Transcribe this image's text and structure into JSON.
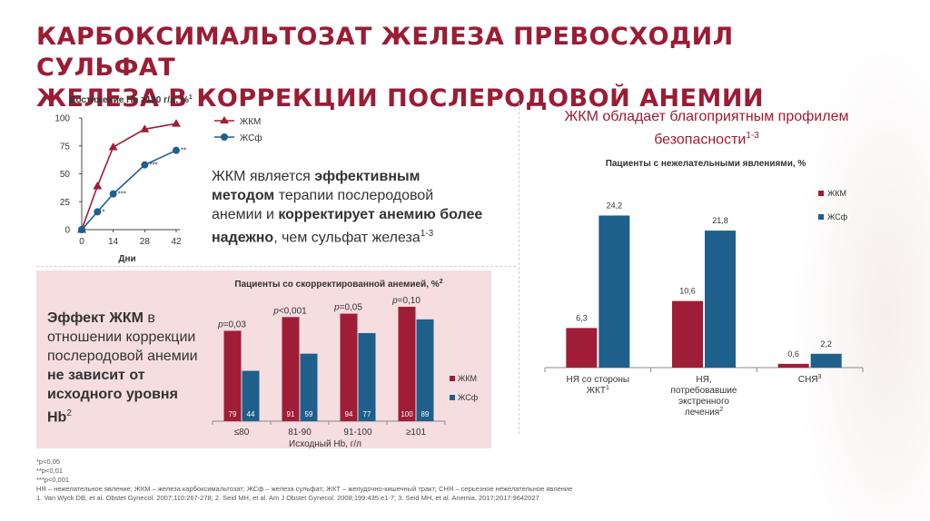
{
  "title_line1": "КАРБОКСИМАЛЬТОЗАТ ЖЕЛЕЗА ПРЕВОСХОДИЛ СУЛЬФАТ",
  "title_line2": "ЖЕЛЕЗА В КОРРЕКЦИИ ПОСЛЕРОДОВОЙ АНЕМИИ",
  "colors": {
    "fcm": "#a01d37",
    "fs": "#1e5f8c",
    "title": "#9b1c34",
    "pink_panel": "#f5dde0"
  },
  "mid_text": {
    "p1": "ЖКМ является ",
    "b1": "эффективным методом",
    "p2": " терапии послеродовой анемии и ",
    "b2": "корректирует анемию более надежно",
    "p3": ", чем сульфат железа",
    "sup": "1-3"
  },
  "left_text": {
    "b1": "Эффект ЖКМ",
    "p1": " в отношении коррекции послеродовой анемии ",
    "b2": "не зависит от исходного уровня Hb",
    "sup": "2"
  },
  "right_heading": {
    "line1": "ЖКМ обладает благоприятным профилем",
    "line2": "безопасности",
    "sup": "1-3"
  },
  "footnotes": {
    "f1": "*p<0,05",
    "f2": "**p<0,01",
    "f3": "***p<0,001",
    "abbr": "НЯ – нежелательное явление; ЖКМ – железа карбоксимальтозат; ЖСф – железа сульфат; ЖКТ – желудочно-кишечный тракт; СНЯ – серьезное нежелательное явление",
    "refs": "1. Van Wyck DB, et al. Obstet Gynecol. 2007;110:267-278; 2. Seid MH, et al. Am J Obstet Gynecol. 2008;199:435.e1-7; 3. Seid MH, et al. Anemia. 2017;2017:9642027"
  },
  "chart_data": [
    {
      "type": "line",
      "title": "Достижение Hb ≥120 г/л, %",
      "title_sup": "1",
      "xlabel": "Дни",
      "ylabel": "",
      "x": [
        0,
        7,
        14,
        28,
        42
      ],
      "x_ticks": [
        "0",
        "14",
        "28",
        "42"
      ],
      "y_ticks": [
        "0",
        "25",
        "50",
        "75",
        "100"
      ],
      "ylim": [
        0,
        100
      ],
      "series": [
        {
          "name": "ЖКМ",
          "values": [
            0,
            39,
            74,
            90,
            95
          ],
          "marker": "triangle",
          "color": "#a01d37",
          "labels": [
            "",
            "",
            "",
            "",
            ""
          ]
        },
        {
          "name": "ЖСф",
          "values": [
            0,
            16,
            32,
            58,
            71
          ],
          "marker": "circle",
          "color": "#1e5f8c",
          "labels": [
            "",
            "*",
            "***",
            "***",
            "**"
          ]
        }
      ],
      "legend_position": "top-right"
    },
    {
      "type": "bar",
      "title": "Пациенты со скорректированной анемией, %",
      "title_sup": "2",
      "xlabel": "Исходный Hb, г/л",
      "categories": [
        "≤80",
        "81-90",
        "91-100",
        "≥101"
      ],
      "ylim": [
        0,
        100
      ],
      "series": [
        {
          "name": "ЖКМ",
          "values": [
            79,
            91,
            94,
            100
          ],
          "color": "#a01d37"
        },
        {
          "name": "ЖСф",
          "values": [
            44,
            59,
            77,
            89
          ],
          "color": "#1e5f8c"
        }
      ],
      "annotations": [
        "p=0,03",
        "p<0,001",
        "p=0,05",
        "p=0,10"
      ],
      "legend_position": "right"
    },
    {
      "type": "bar",
      "title": "Пациенты с нежелательными явлениями, %",
      "xlabel": "",
      "categories": [
        [
          "НЯ со стороны",
          "ЖКТ"
        ],
        [
          "НЯ,",
          "потребовавшие",
          "экстренного",
          "лечения"
        ],
        [
          "СНЯ"
        ]
      ],
      "category_sups": [
        "1",
        "2",
        "3"
      ],
      "ylim": [
        0,
        26
      ],
      "series": [
        {
          "name": "ЖКМ",
          "values": [
            6.3,
            10.6,
            0.6
          ],
          "labels": [
            "6,3",
            "10,6",
            "0,6"
          ],
          "color": "#a01d37"
        },
        {
          "name": "ЖСф",
          "values": [
            24.2,
            21.8,
            2.2
          ],
          "labels": [
            "24,2",
            "21,8",
            "2,2"
          ],
          "color": "#1e5f8c"
        }
      ],
      "legend_position": "top-right"
    }
  ]
}
